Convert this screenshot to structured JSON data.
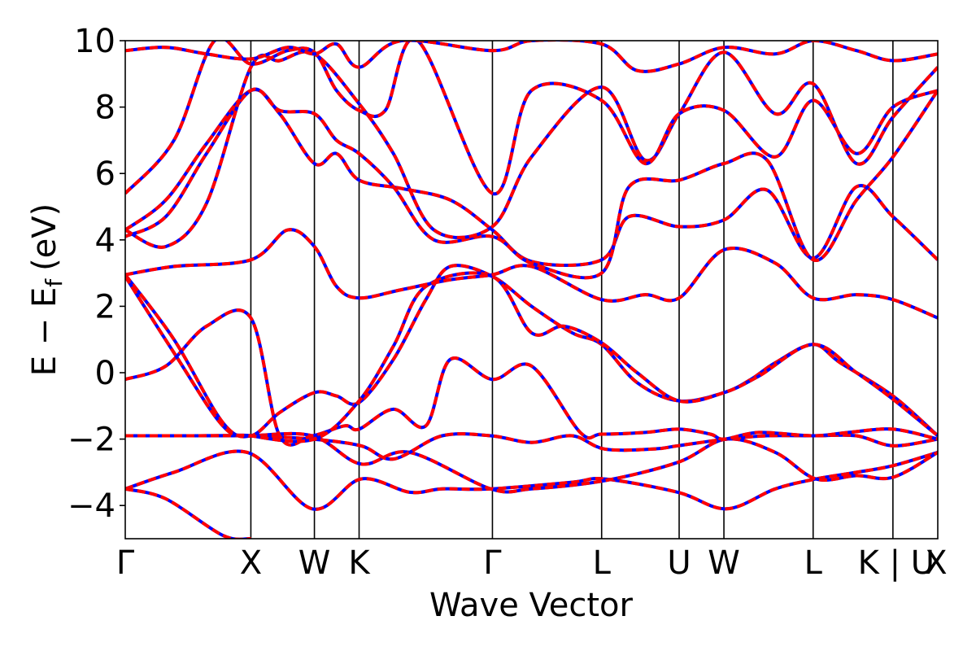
{
  "chart_data": {
    "type": "line",
    "title": "",
    "xlabel": "Wave Vector",
    "ylabel": "E − E",
    "ylabel_sub": "f",
    "ylabel_unit": "(eV)",
    "ylim": [
      -5,
      10
    ],
    "yticks": [
      -4,
      -2,
      0,
      2,
      4,
      6,
      8,
      10
    ],
    "ytick_labels": [
      "−4",
      "−2",
      "0",
      "2",
      "4",
      "6",
      "8",
      "10"
    ],
    "xlim": [
      0,
      1
    ],
    "kpoints": [
      {
        "label": "Γ",
        "x": 0.0
      },
      {
        "label": "X",
        "x": 0.1546
      },
      {
        "label": "W",
        "x": 0.2328
      },
      {
        "label": "K",
        "x": 0.2878
      },
      {
        "label": "Γ",
        "x": 0.4519
      },
      {
        "label": "L",
        "x": 0.5863
      },
      {
        "label": "U",
        "x": 0.6817
      },
      {
        "label": "W",
        "x": 0.7368
      },
      {
        "label": "L",
        "x": 0.8466
      },
      {
        "label": "K | U",
        "x": 0.9448
      },
      {
        "label": "X",
        "x": 1.0
      }
    ],
    "colors": {
      "series_a": "#0000ff",
      "series_b": "#ff0000"
    },
    "bands": [
      {
        "x": [
          0.0,
          0.06,
          0.15,
          0.23,
          0.29,
          0.35,
          0.39,
          0.45,
          0.55,
          0.59,
          0.68,
          0.74,
          0.8,
          0.85,
          0.9,
          0.945,
          1.0
        ],
        "y": [
          -3.5,
          -3.0,
          -2.4,
          -4.1,
          -3.2,
          -3.6,
          -3.5,
          -3.5,
          -3.3,
          -3.2,
          -3.6,
          -4.1,
          -3.5,
          -3.2,
          -3.0,
          -2.8,
          -2.4
        ]
      },
      {
        "x": [
          0.0,
          0.05,
          0.12,
          0.1546
        ],
        "y": [
          -3.5,
          -3.8,
          -4.9,
          -5.0
        ]
      },
      {
        "x": [
          0.0,
          0.08,
          0.15,
          0.23,
          0.29,
          0.35,
          0.45,
          0.5,
          0.59,
          0.68,
          0.74,
          0.8,
          0.85,
          0.9,
          0.945,
          1.0
        ],
        "y": [
          -1.9,
          -1.9,
          -1.9,
          -1.9,
          -2.75,
          -2.4,
          -3.5,
          -3.5,
          -3.25,
          -2.7,
          -2.0,
          -2.4,
          -3.2,
          -3.1,
          -3.15,
          -2.4
        ]
      },
      {
        "x": [
          0.0,
          0.08,
          0.15,
          0.23,
          0.29,
          0.33,
          0.39,
          0.45,
          0.5,
          0.55,
          0.59,
          0.65,
          0.68,
          0.74,
          0.79,
          0.85,
          0.9,
          0.945,
          1.0
        ],
        "y": [
          -1.9,
          -1.9,
          -1.9,
          -2.0,
          -2.2,
          -2.6,
          -1.9,
          -1.9,
          -2.1,
          -1.9,
          -2.3,
          -2.3,
          -2.2,
          -2.0,
          -1.9,
          -1.9,
          -1.9,
          -2.2,
          -2.0
        ]
      },
      {
        "x": [
          0.0,
          0.05,
          0.1,
          0.1546,
          0.19,
          0.23,
          0.27,
          0.2878,
          0.33,
          0.37,
          0.4,
          0.4519,
          0.5,
          0.56,
          0.5863,
          0.64,
          0.6817,
          0.72,
          0.7368,
          0.78,
          0.8466,
          0.89,
          0.9448,
          1.0
        ],
        "y": [
          -0.2,
          0.2,
          1.4,
          1.65,
          -1.9,
          -1.9,
          -1.6,
          -1.7,
          -1.1,
          -1.6,
          0.4,
          -0.2,
          0.2,
          -1.8,
          -1.85,
          -1.8,
          -1.7,
          -1.85,
          -2.0,
          -1.8,
          -1.9,
          -1.8,
          -1.7,
          -2.0
        ]
      },
      {
        "x": [
          0.0,
          0.06,
          0.12,
          0.1546,
          0.19,
          0.2328,
          0.26,
          0.2878,
          0.33,
          0.37,
          0.4,
          0.4519,
          0.5,
          0.55,
          0.5863,
          0.63,
          0.6817,
          0.7368,
          0.77,
          0.8,
          0.8466,
          0.88,
          0.9448,
          1.0
        ],
        "y": [
          2.95,
          1.0,
          -1.5,
          -1.9,
          -1.2,
          -0.6,
          -0.7,
          -0.9,
          0.4,
          2.2,
          3.2,
          2.9,
          2.0,
          1.2,
          0.85,
          -0.3,
          -0.85,
          -0.6,
          -0.2,
          0.3,
          0.85,
          0.3,
          -0.7,
          -1.9
        ]
      },
      {
        "x": [
          0.0,
          0.06,
          0.12,
          0.1546,
          0.2328,
          0.2878,
          0.33,
          0.37,
          0.4519,
          0.5,
          0.54,
          0.5863,
          0.63,
          0.6817,
          0.7368,
          0.78,
          0.8466,
          0.9,
          0.9448,
          1.0
        ],
        "y": [
          2.9,
          0.6,
          -1.6,
          -1.9,
          -2.0,
          -0.85,
          0.8,
          2.6,
          2.9,
          1.2,
          1.4,
          0.9,
          0.0,
          -0.85,
          -0.6,
          -0.1,
          0.85,
          0.0,
          -0.8,
          -1.9
        ]
      },
      {
        "x": [
          0.0,
          0.06,
          0.1546,
          0.2,
          0.2328,
          0.26,
          0.2878,
          0.34,
          0.4,
          0.4519,
          0.5,
          0.5863,
          0.64,
          0.6817,
          0.7368,
          0.8,
          0.8466,
          0.9,
          0.9448,
          1.0
        ],
        "y": [
          2.95,
          3.2,
          3.4,
          4.3,
          3.8,
          2.6,
          2.25,
          2.5,
          2.8,
          2.95,
          3.2,
          2.2,
          2.35,
          2.25,
          3.7,
          3.3,
          2.25,
          2.35,
          2.2,
          1.65
        ]
      },
      {
        "x": [
          0.0,
          0.05,
          0.1,
          0.1546,
          0.19,
          0.2328,
          0.26,
          0.2878,
          0.34,
          0.4,
          0.4519,
          0.5,
          0.5863,
          0.62,
          0.6817,
          0.7368,
          0.79,
          0.8466,
          0.9,
          0.9448,
          1.0
        ],
        "y": [
          4.3,
          5.2,
          6.9,
          8.5,
          7.8,
          6.3,
          6.6,
          5.8,
          5.55,
          5.2,
          4.3,
          3.35,
          3.4,
          4.7,
          4.4,
          4.6,
          5.5,
          3.45,
          5.6,
          4.7,
          3.4
        ]
      },
      {
        "x": [
          0.0,
          0.05,
          0.1,
          0.1546,
          0.19,
          0.2328,
          0.26,
          0.2878,
          0.33,
          0.38,
          0.4519,
          0.5,
          0.5863,
          0.62,
          0.6817,
          0.7368,
          0.79,
          0.8466,
          0.9,
          0.9448,
          1.0
        ],
        "y": [
          4.1,
          4.7,
          6.6,
          8.5,
          7.9,
          7.8,
          7.0,
          6.6,
          5.6,
          4.0,
          4.1,
          3.3,
          3.0,
          5.6,
          5.8,
          6.3,
          6.4,
          3.4,
          5.2,
          6.5,
          8.5
        ]
      },
      {
        "x": [
          0.0,
          0.05,
          0.1,
          0.1546,
          0.19,
          0.2328,
          0.2878,
          0.33,
          0.38,
          0.4519,
          0.5,
          0.5863,
          0.64,
          0.6817,
          0.7368,
          0.8,
          0.8466,
          0.9,
          0.9448,
          1.0
        ],
        "y": [
          4.3,
          3.8,
          5.1,
          9.2,
          9.4,
          9.6,
          8.1,
          6.6,
          4.3,
          4.4,
          6.5,
          8.6,
          6.4,
          7.8,
          9.65,
          7.8,
          8.7,
          6.3,
          7.7,
          9.2
        ]
      },
      {
        "x": [
          0.0,
          0.06,
          0.11,
          0.1546,
          0.2,
          0.2328,
          0.26,
          0.2878,
          0.32,
          0.36,
          0.4519,
          0.5,
          0.5863,
          0.64,
          0.6817,
          0.7368,
          0.8,
          0.8466,
          0.9,
          0.9448,
          1.0
        ],
        "y": [
          5.4,
          7.0,
          10.0,
          9.3,
          9.7,
          9.65,
          8.5,
          7.9,
          7.9,
          10.0,
          5.4,
          8.5,
          8.2,
          6.3,
          7.8,
          7.9,
          6.5,
          8.2,
          6.6,
          8.0,
          8.5
        ]
      },
      {
        "x": [
          0.0,
          0.05,
          0.1,
          0.1546,
          0.2,
          0.2328,
          0.26,
          0.2878,
          0.34,
          0.4519,
          0.5,
          0.5863,
          0.63,
          0.6817,
          0.7368,
          0.8,
          0.8466,
          0.9,
          0.9448,
          1.0
        ],
        "y": [
          9.7,
          9.8,
          9.6,
          9.45,
          9.8,
          9.6,
          9.9,
          9.2,
          10.0,
          9.7,
          10.0,
          9.9,
          9.1,
          9.3,
          9.8,
          9.6,
          10.0,
          9.7,
          9.4,
          9.6
        ]
      }
    ]
  }
}
